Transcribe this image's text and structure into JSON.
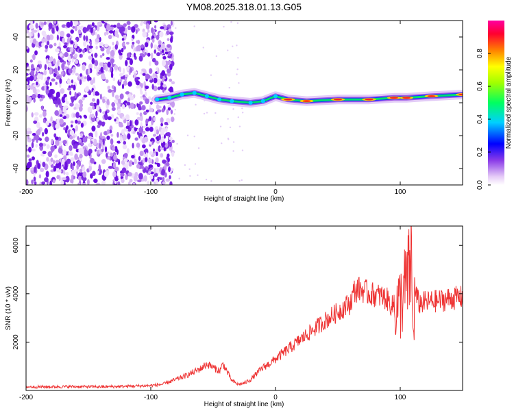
{
  "title": "YM08.2025.318.01.13.G05",
  "chart_data": [
    {
      "type": "heatmap",
      "name": "spectrogram",
      "xlabel": "Height of straight line (km)",
      "ylabel": "Frequency (Hz)",
      "xlim": [
        -200,
        150
      ],
      "ylim": [
        -50,
        50
      ],
      "xticks": [
        -200,
        -100,
        0,
        100
      ],
      "xtick_labels": [
        "-200",
        "-100",
        "0",
        "100"
      ],
      "yticks": [
        -40,
        -20,
        0,
        20,
        40
      ],
      "ytick_labels": [
        "-40",
        "-20",
        "0",
        "20",
        "40"
      ],
      "colorbar": {
        "label": "Normalized spectral amplitude",
        "range": [
          0,
          1
        ],
        "ticks": [
          0,
          0.2,
          0.4,
          0.6,
          0.8
        ],
        "tick_labels": [
          "0.0",
          "0.2",
          "0.4",
          "0.6",
          "0.8"
        ],
        "colormap": [
          "#ffffff",
          "#d9b3f5",
          "#6a00e0",
          "#0000ff",
          "#00d0ff",
          "#00ff40",
          "#ffff00",
          "#ff6000",
          "#ff0040",
          "#ff00a0"
        ]
      },
      "ridge_points": [
        {
          "x": -95,
          "y": 2
        },
        {
          "x": -85,
          "y": 3
        },
        {
          "x": -75,
          "y": 5
        },
        {
          "x": -65,
          "y": 6
        },
        {
          "x": -55,
          "y": 4
        },
        {
          "x": -45,
          "y": 2
        },
        {
          "x": -35,
          "y": 1
        },
        {
          "x": -20,
          "y": 0
        },
        {
          "x": -10,
          "y": 1
        },
        {
          "x": 0,
          "y": 4
        },
        {
          "x": 10,
          "y": 2
        },
        {
          "x": 25,
          "y": 1
        },
        {
          "x": 50,
          "y": 2
        },
        {
          "x": 75,
          "y": 2
        },
        {
          "x": 95,
          "y": 3
        },
        {
          "x": 105,
          "y": 3
        },
        {
          "x": 125,
          "y": 4
        },
        {
          "x": 150,
          "y": 5
        }
      ]
    },
    {
      "type": "line",
      "name": "snr",
      "xlabel": "Height of straight line (km)",
      "ylabel": "SNR (10 * v/v)",
      "xlim": [
        -200,
        150
      ],
      "ylim": [
        0,
        6800
      ],
      "xticks": [
        -200,
        -100,
        0,
        100
      ],
      "xtick_labels": [
        "-200",
        "-100",
        "0",
        "100"
      ],
      "yticks": [
        2000,
        4000,
        6000
      ],
      "ytick_labels": [
        "2000",
        "4000",
        "6000"
      ],
      "color": "#ee3333",
      "series": [
        {
          "name": "SNR",
          "x": [
            -200,
            -180,
            -160,
            -140,
            -120,
            -100,
            -90,
            -80,
            -70,
            -60,
            -55,
            -50,
            -45,
            -42,
            -38,
            -35,
            -30,
            -25,
            -20,
            -15,
            -10,
            -5,
            0,
            5,
            10,
            20,
            30,
            40,
            50,
            55,
            60,
            63,
            66,
            70,
            75,
            80,
            85,
            90,
            93,
            97,
            100,
            103,
            105,
            107,
            109,
            110,
            112,
            115,
            120,
            130,
            140,
            150
          ],
          "y": [
            150,
            150,
            160,
            150,
            170,
            200,
            260,
            450,
            650,
            900,
            1100,
            950,
            800,
            1100,
            700,
            400,
            250,
            300,
            450,
            700,
            950,
            1100,
            1300,
            1500,
            1700,
            2100,
            2500,
            2900,
            3250,
            3450,
            3600,
            4100,
            4200,
            4150,
            4000,
            3950,
            3900,
            3750,
            3500,
            3450,
            3600,
            4100,
            4400,
            4700,
            5600,
            2200,
            4050,
            3600,
            3650,
            3700,
            3800,
            3850
          ]
        }
      ]
    }
  ]
}
